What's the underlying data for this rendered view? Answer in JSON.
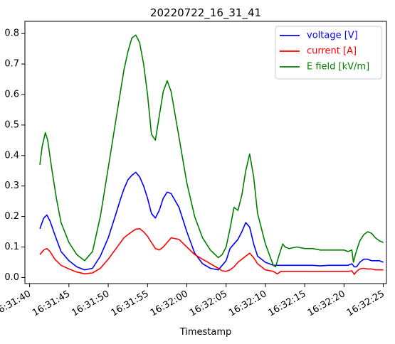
{
  "chart_data": {
    "type": "line",
    "title": "20220722_16_31_41",
    "xlabel": "Timestamp",
    "ylabel": "",
    "x_unit": "seconds after 16:31:40",
    "xlim": [
      -0.6,
      45.4
    ],
    "ylim": [
      -0.02,
      0.84
    ],
    "x_ticks": [
      {
        "value": 0,
        "label": "16:31:40"
      },
      {
        "value": 5,
        "label": "16:31:45"
      },
      {
        "value": 10,
        "label": "16:31:50"
      },
      {
        "value": 15,
        "label": "16:31:55"
      },
      {
        "value": 20,
        "label": "16:32:00"
      },
      {
        "value": 25,
        "label": "16:32:05"
      },
      {
        "value": 30,
        "label": "16:32:10"
      },
      {
        "value": 35,
        "label": "16:32:15"
      },
      {
        "value": 40,
        "label": "16:32:20"
      },
      {
        "value": 45,
        "label": "16:32:25"
      }
    ],
    "y_ticks": [
      {
        "value": 0.0,
        "label": "0.0"
      },
      {
        "value": 0.1,
        "label": "0.1"
      },
      {
        "value": 0.2,
        "label": "0.2"
      },
      {
        "value": 0.3,
        "label": "0.3"
      },
      {
        "value": 0.4,
        "label": "0.4"
      },
      {
        "value": 0.5,
        "label": "0.5"
      },
      {
        "value": 0.6,
        "label": "0.6"
      },
      {
        "value": 0.7,
        "label": "0.7"
      },
      {
        "value": 0.8,
        "label": "0.8"
      }
    ],
    "grid": false,
    "legend_position": "top-right",
    "series": [
      {
        "name": "voltage [V]",
        "color": "#0000ff",
        "x": [
          1.3,
          1.8,
          2.2,
          2.6,
          3.2,
          4.0,
          5.0,
          6.0,
          7.0,
          8.0,
          9.0,
          10.0,
          11.0,
          11.6,
          12.0,
          12.5,
          13.0,
          13.5,
          14.0,
          14.5,
          15.0,
          15.5,
          16.0,
          16.5,
          17.0,
          17.5,
          18.0,
          19.0,
          20.0,
          21.0,
          22.0,
          23.0,
          24.0,
          24.5,
          25.0,
          25.5,
          26.0,
          26.5,
          27.0,
          27.5,
          28.0,
          28.5,
          29.0,
          30.0,
          30.5,
          31.0,
          32.0,
          33.0,
          34.0,
          35.0,
          36.0,
          37.0,
          38.0,
          39.0,
          40.0,
          40.5,
          41.0,
          41.3,
          41.6,
          42.0,
          42.5,
          43.0,
          43.5,
          44.0,
          44.5,
          45.0
        ],
        "y": [
          0.16,
          0.195,
          0.205,
          0.185,
          0.14,
          0.085,
          0.055,
          0.035,
          0.025,
          0.03,
          0.07,
          0.13,
          0.21,
          0.26,
          0.29,
          0.32,
          0.335,
          0.345,
          0.33,
          0.3,
          0.26,
          0.21,
          0.195,
          0.22,
          0.26,
          0.28,
          0.275,
          0.23,
          0.15,
          0.08,
          0.045,
          0.03,
          0.025,
          0.04,
          0.055,
          0.095,
          0.11,
          0.125,
          0.15,
          0.18,
          0.165,
          0.11,
          0.07,
          0.05,
          0.045,
          0.04,
          0.04,
          0.04,
          0.04,
          0.04,
          0.04,
          0.038,
          0.04,
          0.04,
          0.04,
          0.04,
          0.045,
          0.035,
          0.035,
          0.05,
          0.06,
          0.06,
          0.055,
          0.055,
          0.055,
          0.05
        ]
      },
      {
        "name": "current [A]",
        "color": "#ff0000",
        "x": [
          1.3,
          1.8,
          2.2,
          2.6,
          3.2,
          4.0,
          5.0,
          6.0,
          7.0,
          8.0,
          9.0,
          10.0,
          11.0,
          12.0,
          12.5,
          13.0,
          13.5,
          14.0,
          14.5,
          15.0,
          15.5,
          16.0,
          16.5,
          17.0,
          17.5,
          18.0,
          19.0,
          20.0,
          21.0,
          22.0,
          23.0,
          24.0,
          24.5,
          25.0,
          25.5,
          26.0,
          26.5,
          27.0,
          27.5,
          28.0,
          28.5,
          29.0,
          30.0,
          31.0,
          31.5,
          32.0,
          33.0,
          34.0,
          35.0,
          36.0,
          37.0,
          38.0,
          39.0,
          40.0,
          40.5,
          41.0,
          41.3,
          41.6,
          42.0,
          42.5,
          43.0,
          43.5,
          44.0,
          44.5,
          45.0
        ],
        "y": [
          0.075,
          0.09,
          0.095,
          0.085,
          0.06,
          0.04,
          0.028,
          0.018,
          0.012,
          0.015,
          0.03,
          0.06,
          0.095,
          0.13,
          0.14,
          0.15,
          0.158,
          0.16,
          0.15,
          0.135,
          0.115,
          0.095,
          0.09,
          0.1,
          0.115,
          0.13,
          0.125,
          0.1,
          0.075,
          0.06,
          0.045,
          0.03,
          0.022,
          0.02,
          0.025,
          0.035,
          0.05,
          0.06,
          0.07,
          0.08,
          0.065,
          0.045,
          0.025,
          0.02,
          0.012,
          0.02,
          0.02,
          0.02,
          0.02,
          0.02,
          0.02,
          0.02,
          0.02,
          0.02,
          0.02,
          0.022,
          0.01,
          0.02,
          0.028,
          0.03,
          0.028,
          0.028,
          0.025,
          0.025,
          0.025
        ]
      },
      {
        "name": "E field [kV/m]",
        "color": "#008000",
        "x": [
          1.3,
          1.6,
          2.0,
          2.3,
          2.8,
          3.4,
          4.0,
          5.0,
          6.0,
          7.0,
          8.0,
          9.0,
          10.0,
          11.0,
          11.5,
          12.0,
          12.5,
          13.0,
          13.5,
          14.0,
          14.5,
          15.0,
          15.5,
          16.0,
          16.5,
          17.0,
          17.5,
          18.0,
          19.0,
          20.0,
          21.0,
          22.0,
          23.0,
          24.0,
          24.5,
          25.0,
          25.5,
          26.0,
          26.5,
          27.0,
          27.5,
          28.0,
          28.5,
          29.0,
          30.0,
          31.0,
          31.3,
          31.7,
          32.2,
          32.5,
          33.0,
          34.0,
          35.0,
          36.0,
          37.0,
          38.0,
          39.0,
          40.0,
          40.5,
          41.0,
          41.2,
          41.5,
          42.0,
          42.5,
          43.0,
          43.5,
          44.0,
          44.5,
          45.0
        ],
        "y": [
          0.37,
          0.43,
          0.475,
          0.45,
          0.36,
          0.26,
          0.18,
          0.115,
          0.075,
          0.055,
          0.085,
          0.2,
          0.36,
          0.52,
          0.6,
          0.68,
          0.74,
          0.785,
          0.795,
          0.77,
          0.7,
          0.6,
          0.47,
          0.45,
          0.53,
          0.61,
          0.645,
          0.61,
          0.46,
          0.31,
          0.2,
          0.13,
          0.09,
          0.065,
          0.075,
          0.1,
          0.16,
          0.23,
          0.22,
          0.27,
          0.35,
          0.405,
          0.33,
          0.21,
          0.11,
          0.04,
          0.035,
          0.07,
          0.11,
          0.1,
          0.095,
          0.1,
          0.095,
          0.095,
          0.09,
          0.09,
          0.09,
          0.09,
          0.085,
          0.09,
          0.05,
          0.08,
          0.12,
          0.14,
          0.15,
          0.145,
          0.13,
          0.12,
          0.115
        ]
      }
    ]
  }
}
